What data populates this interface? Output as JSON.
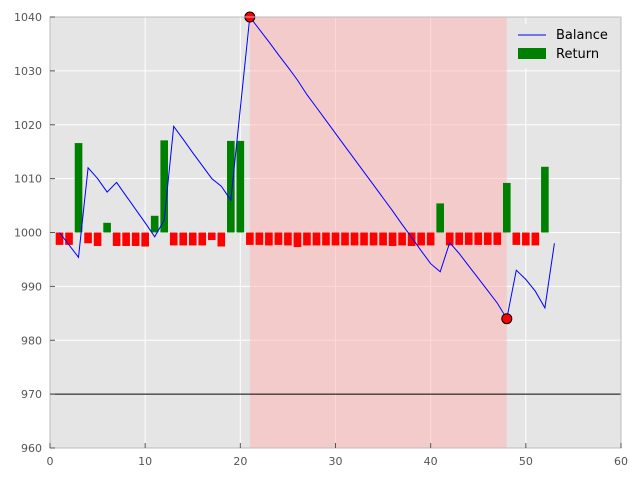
{
  "chart_data": {
    "type": "bar+line",
    "title": "",
    "xlabel": "",
    "ylabel": "",
    "xlim": [
      0,
      60
    ],
    "ylim": [
      960,
      1040
    ],
    "xticks": [
      0,
      10,
      20,
      30,
      40,
      50,
      60
    ],
    "yticks": [
      960,
      970,
      980,
      990,
      1000,
      1010,
      1020,
      1030,
      1040
    ],
    "grid": true,
    "baseline": 1000,
    "reference_line": 970,
    "legend": {
      "position": "top-right",
      "entries": [
        "Balance",
        "Return"
      ]
    },
    "drawdown_span": {
      "start": 21,
      "end": 48
    },
    "series": [
      {
        "name": "Balance",
        "type": "line",
        "color": "#0000ff",
        "x": [
          1,
          2,
          3,
          4,
          5,
          6,
          7,
          8,
          9,
          10,
          11,
          12,
          13,
          14,
          15,
          16,
          17,
          18,
          19,
          20,
          21,
          22,
          23,
          24,
          25,
          26,
          27,
          28,
          29,
          30,
          31,
          32,
          33,
          34,
          35,
          36,
          37,
          38,
          39,
          40,
          41,
          42,
          43,
          44,
          45,
          46,
          47,
          48,
          49,
          50,
          51,
          52,
          53
        ],
        "y": [
          1000.0,
          997.7,
          995.4,
          1012.0,
          1010.0,
          1007.5,
          1009.3,
          1006.8,
          1004.3,
          1001.8,
          999.2,
          1002.3,
          1019.7,
          1017.3,
          1014.8,
          1012.4,
          1010.0,
          1008.6,
          1006.0,
          1023.0,
          1040.0,
          1037.7,
          1035.4,
          1033.0,
          1030.7,
          1028.3,
          1025.6,
          1023.2,
          1020.8,
          1018.4,
          1016.0,
          1013.6,
          1011.2,
          1008.8,
          1006.4,
          1004.0,
          1001.5,
          999.1,
          996.6,
          994.2,
          992.7,
          998.1,
          996.1,
          993.8,
          991.5,
          989.2,
          986.9,
          984.0,
          993.0,
          991.3,
          989.1,
          986.0,
          998.0
        ]
      },
      {
        "name": "Return",
        "type": "bar",
        "color": "#008000",
        "negative_color": "#ff0000",
        "x": [
          1,
          2,
          3,
          4,
          5,
          6,
          7,
          8,
          9,
          10,
          11,
          12,
          13,
          14,
          15,
          16,
          17,
          18,
          19,
          20,
          21,
          22,
          23,
          24,
          25,
          26,
          27,
          28,
          29,
          30,
          31,
          32,
          33,
          34,
          35,
          36,
          37,
          38,
          39,
          40,
          41,
          42,
          43,
          44,
          45,
          46,
          47,
          48,
          49,
          50,
          51,
          52
        ],
        "values": [
          -2.3,
          -2.3,
          16.6,
          -2.0,
          -2.5,
          1.8,
          -2.5,
          -2.5,
          -2.5,
          -2.6,
          3.1,
          17.1,
          -2.4,
          -2.4,
          -2.4,
          -2.4,
          -1.4,
          -2.6,
          17.0,
          17.0,
          -2.3,
          -2.3,
          -2.4,
          -2.3,
          -2.4,
          -2.7,
          -2.4,
          -2.4,
          -2.4,
          -2.4,
          -2.4,
          -2.4,
          -2.4,
          -2.4,
          -2.4,
          -2.5,
          -2.4,
          -2.5,
          -2.4,
          -2.4,
          5.4,
          -2.4,
          -2.3,
          -2.3,
          -2.3,
          -2.3,
          -2.3,
          9.2,
          -2.3,
          -2.4,
          -2.4,
          12.2
        ]
      }
    ],
    "markers": [
      {
        "label": "peak",
        "x": 21,
        "y": 1040,
        "color": "#ff0000"
      },
      {
        "label": "trough",
        "x": 48,
        "y": 984,
        "color": "#ff0000"
      }
    ]
  }
}
